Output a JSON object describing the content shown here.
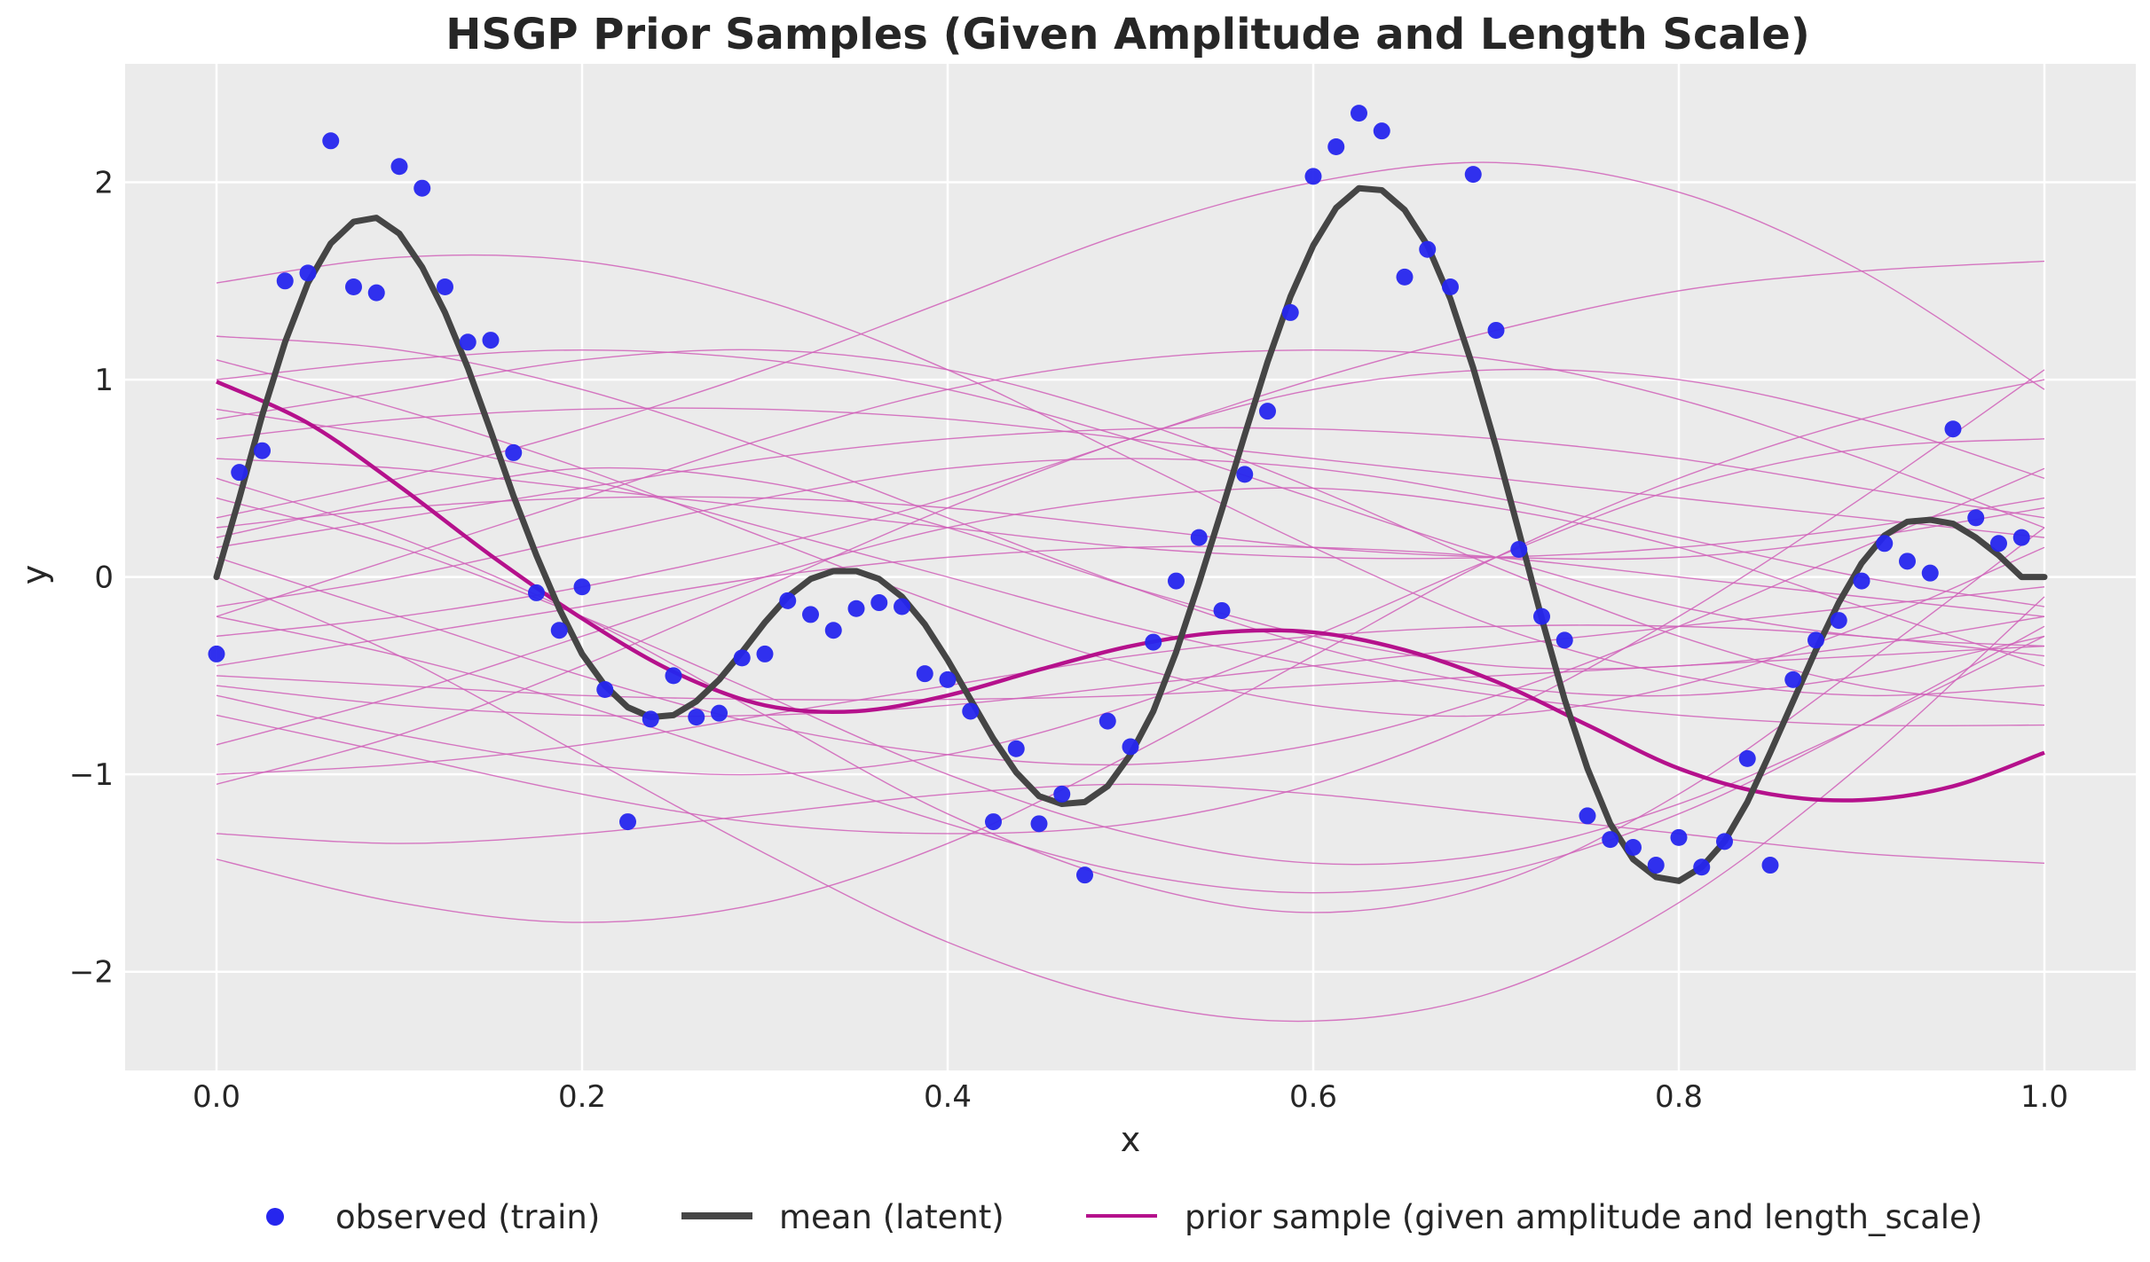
{
  "chart_data": {
    "type": "line",
    "title": "HSGP Prior Samples (Given Amplitude and Length Scale)",
    "xlabel": "x",
    "ylabel": "y",
    "xlim": [
      -0.05,
      1.05
    ],
    "ylim": [
      -2.5,
      2.6
    ],
    "xticks": [
      0.0,
      0.2,
      0.4,
      0.6,
      0.8,
      1.0
    ],
    "xtick_labels": [
      "0.0",
      "0.2",
      "0.4",
      "0.6",
      "0.8",
      "1.0"
    ],
    "yticks": [
      -2,
      -1,
      0,
      1,
      2
    ],
    "ytick_labels": [
      "−2",
      "−1",
      "0",
      "1",
      "2"
    ],
    "grid": true,
    "legend_position": "bottom-center",
    "colors": {
      "background": "#ebebeb",
      "grid": "#ffffff",
      "observed": "#2626ee",
      "mean": "#454545",
      "prior": "#b5118c",
      "prior_thin": "#d060b8"
    },
    "series": [
      {
        "name": "observed (train)",
        "kind": "scatter",
        "points": [
          [
            0.0,
            -0.39
          ],
          [
            0.0125,
            0.53
          ],
          [
            0.025,
            0.64
          ],
          [
            0.0375,
            1.5
          ],
          [
            0.05,
            1.54
          ],
          [
            0.0625,
            2.21
          ],
          [
            0.075,
            1.47
          ],
          [
            0.0875,
            1.44
          ],
          [
            0.1,
            2.08
          ],
          [
            0.1125,
            1.97
          ],
          [
            0.125,
            1.47
          ],
          [
            0.1375,
            1.19
          ],
          [
            0.15,
            1.2
          ],
          [
            0.1625,
            0.63
          ],
          [
            0.175,
            -0.08
          ],
          [
            0.1875,
            -0.27
          ],
          [
            0.2,
            -0.05
          ],
          [
            0.2125,
            -0.57
          ],
          [
            0.225,
            -1.24
          ],
          [
            0.2375,
            -0.72
          ],
          [
            0.25,
            -0.5
          ],
          [
            0.2625,
            -0.71
          ],
          [
            0.275,
            -0.69
          ],
          [
            0.2875,
            -0.41
          ],
          [
            0.3,
            -0.39
          ],
          [
            0.3125,
            -0.12
          ],
          [
            0.325,
            -0.19
          ],
          [
            0.3375,
            -0.27
          ],
          [
            0.35,
            -0.16
          ],
          [
            0.3625,
            -0.13
          ],
          [
            0.375,
            -0.15
          ],
          [
            0.3875,
            -0.49
          ],
          [
            0.4,
            -0.52
          ],
          [
            0.4125,
            -0.68
          ],
          [
            0.425,
            -1.24
          ],
          [
            0.4375,
            -0.87
          ],
          [
            0.45,
            -1.25
          ],
          [
            0.4625,
            -1.1
          ],
          [
            0.475,
            -1.51
          ],
          [
            0.4875,
            -0.73
          ],
          [
            0.5,
            -0.86
          ],
          [
            0.5125,
            -0.33
          ],
          [
            0.525,
            -0.02
          ],
          [
            0.5375,
            0.2
          ],
          [
            0.55,
            -0.17
          ],
          [
            0.5625,
            0.52
          ],
          [
            0.575,
            0.84
          ],
          [
            0.5875,
            1.34
          ],
          [
            0.6,
            2.03
          ],
          [
            0.6125,
            2.18
          ],
          [
            0.625,
            2.35
          ],
          [
            0.6375,
            2.26
          ],
          [
            0.65,
            1.52
          ],
          [
            0.6625,
            1.66
          ],
          [
            0.675,
            1.47
          ],
          [
            0.6875,
            2.04
          ],
          [
            0.7,
            1.25
          ],
          [
            0.7125,
            0.14
          ],
          [
            0.725,
            -0.2
          ],
          [
            0.7375,
            -0.32
          ],
          [
            0.75,
            -1.21
          ],
          [
            0.7625,
            -1.33
          ],
          [
            0.775,
            -1.37
          ],
          [
            0.7875,
            -1.46
          ],
          [
            0.8,
            -1.32
          ],
          [
            0.8125,
            -1.47
          ],
          [
            0.825,
            -1.34
          ],
          [
            0.8375,
            -0.92
          ],
          [
            0.85,
            -1.46
          ],
          [
            0.8625,
            -0.52
          ],
          [
            0.875,
            -0.32
          ],
          [
            0.8875,
            -0.22
          ],
          [
            0.9,
            -0.02
          ],
          [
            0.9125,
            0.17
          ],
          [
            0.925,
            0.08
          ],
          [
            0.9375,
            0.02
          ],
          [
            0.95,
            0.75
          ],
          [
            0.9625,
            0.3
          ],
          [
            0.975,
            0.17
          ],
          [
            0.9875,
            0.2
          ]
        ]
      },
      {
        "name": "mean (latent)",
        "kind": "line",
        "points": [
          [
            0.0,
            0.0
          ],
          [
            0.0125,
            0.4
          ],
          [
            0.025,
            0.82
          ],
          [
            0.0375,
            1.19
          ],
          [
            0.05,
            1.49
          ],
          [
            0.0625,
            1.69
          ],
          [
            0.075,
            1.8
          ],
          [
            0.0875,
            1.82
          ],
          [
            0.1,
            1.74
          ],
          [
            0.1125,
            1.57
          ],
          [
            0.125,
            1.34
          ],
          [
            0.1375,
            1.06
          ],
          [
            0.15,
            0.74
          ],
          [
            0.1625,
            0.41
          ],
          [
            0.175,
            0.11
          ],
          [
            0.1875,
            -0.16
          ],
          [
            0.2,
            -0.39
          ],
          [
            0.2125,
            -0.55
          ],
          [
            0.225,
            -0.66
          ],
          [
            0.2375,
            -0.71
          ],
          [
            0.25,
            -0.7
          ],
          [
            0.2625,
            -0.63
          ],
          [
            0.275,
            -0.52
          ],
          [
            0.2875,
            -0.38
          ],
          [
            0.3,
            -0.23
          ],
          [
            0.3125,
            -0.1
          ],
          [
            0.325,
            -0.01
          ],
          [
            0.3375,
            0.03
          ],
          [
            0.35,
            0.03
          ],
          [
            0.3625,
            -0.01
          ],
          [
            0.375,
            -0.1
          ],
          [
            0.3875,
            -0.24
          ],
          [
            0.4,
            -0.42
          ],
          [
            0.4125,
            -0.62
          ],
          [
            0.425,
            -0.82
          ],
          [
            0.4375,
            -0.99
          ],
          [
            0.45,
            -1.11
          ],
          [
            0.4625,
            -1.15
          ],
          [
            0.475,
            -1.14
          ],
          [
            0.4875,
            -1.06
          ],
          [
            0.5,
            -0.9
          ],
          [
            0.5125,
            -0.68
          ],
          [
            0.525,
            -0.38
          ],
          [
            0.5375,
            -0.03
          ],
          [
            0.55,
            0.34
          ],
          [
            0.5625,
            0.72
          ],
          [
            0.575,
            1.09
          ],
          [
            0.5875,
            1.42
          ],
          [
            0.6,
            1.68
          ],
          [
            0.6125,
            1.87
          ],
          [
            0.625,
            1.97
          ],
          [
            0.6375,
            1.96
          ],
          [
            0.65,
            1.86
          ],
          [
            0.6625,
            1.68
          ],
          [
            0.675,
            1.41
          ],
          [
            0.6875,
            1.06
          ],
          [
            0.7,
            0.66
          ],
          [
            0.7125,
            0.23
          ],
          [
            0.725,
            -0.21
          ],
          [
            0.7375,
            -0.62
          ],
          [
            0.75,
            -0.97
          ],
          [
            0.7625,
            -1.25
          ],
          [
            0.775,
            -1.43
          ],
          [
            0.7875,
            -1.52
          ],
          [
            0.8,
            -1.54
          ],
          [
            0.8125,
            -1.47
          ],
          [
            0.825,
            -1.34
          ],
          [
            0.8375,
            -1.14
          ],
          [
            0.85,
            -0.89
          ],
          [
            0.8625,
            -0.63
          ],
          [
            0.875,
            -0.37
          ],
          [
            0.8875,
            -0.13
          ],
          [
            0.9,
            0.07
          ],
          [
            0.9125,
            0.21
          ],
          [
            0.925,
            0.28
          ],
          [
            0.9375,
            0.29
          ],
          [
            0.95,
            0.27
          ],
          [
            0.9625,
            0.2
          ],
          [
            0.975,
            0.11
          ],
          [
            0.9875,
            0.0
          ],
          [
            1.0,
            0.0
          ]
        ]
      },
      {
        "name": "prior sample (given amplitude and length_scale)",
        "kind": "line",
        "points": [
          [
            0.0,
            0.99
          ],
          [
            0.05,
            0.78
          ],
          [
            0.1,
            0.46
          ],
          [
            0.15,
            0.11
          ],
          [
            0.2,
            -0.21
          ],
          [
            0.25,
            -0.48
          ],
          [
            0.3,
            -0.65
          ],
          [
            0.35,
            -0.68
          ],
          [
            0.4,
            -0.6
          ],
          [
            0.45,
            -0.47
          ],
          [
            0.5,
            -0.35
          ],
          [
            0.55,
            -0.28
          ],
          [
            0.6,
            -0.28
          ],
          [
            0.65,
            -0.37
          ],
          [
            0.7,
            -0.53
          ],
          [
            0.75,
            -0.75
          ],
          [
            0.8,
            -0.97
          ],
          [
            0.85,
            -1.1
          ],
          [
            0.9,
            -1.13
          ],
          [
            0.95,
            -1.06
          ],
          [
            1.0,
            -0.89
          ]
        ]
      }
    ],
    "prior_samples_thin": [
      [
        0.2,
        0.4,
        0.55,
        0.48,
        0.25,
        -0.05,
        -0.3,
        -0.45,
        -0.45,
        -0.35,
        -0.2
      ],
      [
        1.22,
        1.15,
        0.95,
        0.65,
        0.3,
        -0.05,
        -0.35,
        -0.55,
        -0.6,
        -0.5,
        -0.3
      ],
      [
        1.49,
        1.62,
        1.6,
        1.4,
        1.05,
        0.6,
        0.15,
        -0.25,
        -0.5,
        -0.6,
        -0.55
      ],
      [
        -1.0,
        -0.95,
        -0.85,
        -0.7,
        -0.55,
        -0.4,
        -0.3,
        -0.25,
        -0.25,
        -0.3,
        -0.4
      ],
      [
        -1.43,
        -1.65,
        -1.75,
        -1.65,
        -1.35,
        -0.9,
        -0.4,
        0.1,
        0.5,
        0.8,
        1.0
      ],
      [
        -1.3,
        -1.35,
        -1.3,
        -1.2,
        -1.1,
        -1.05,
        -1.1,
        -1.2,
        -1.3,
        -1.4,
        -1.45
      ],
      [
        0.5,
        0.2,
        -0.2,
        -0.7,
        -1.2,
        -1.55,
        -1.7,
        -1.55,
        -1.1,
        -0.45,
        0.25
      ],
      [
        -0.5,
        -0.55,
        -0.6,
        -0.62,
        -0.62,
        -0.6,
        -0.55,
        -0.5,
        -0.45,
        -0.4,
        -0.35
      ],
      [
        0.8,
        0.95,
        1.1,
        1.15,
        1.05,
        0.8,
        0.45,
        0.05,
        -0.3,
        -0.55,
        -0.65
      ],
      [
        -0.2,
        0.1,
        0.4,
        0.7,
        0.95,
        1.1,
        1.15,
        1.1,
        0.9,
        0.6,
        0.25
      ],
      [
        0.0,
        -0.4,
        -0.9,
        -1.4,
        -1.85,
        -2.15,
        -2.25,
        -2.1,
        -1.65,
        -0.95,
        -0.1
      ],
      [
        0.7,
        0.8,
        0.85,
        0.85,
        0.8,
        0.7,
        0.6,
        0.5,
        0.4,
        0.3,
        0.2
      ],
      [
        -0.6,
        -0.8,
        -0.95,
        -1.0,
        -0.9,
        -0.65,
        -0.3,
        0.1,
        0.45,
        0.65,
        0.7
      ],
      [
        0.3,
        0.5,
        0.75,
        1.05,
        1.4,
        1.75,
        2.0,
        2.1,
        1.95,
        1.55,
        0.95
      ],
      [
        -0.85,
        -0.6,
        -0.3,
        0.0,
        0.25,
        0.4,
        0.45,
        0.35,
        0.15,
        -0.15,
        -0.45
      ],
      [
        1.0,
        1.1,
        1.15,
        1.1,
        0.95,
        0.7,
        0.4,
        0.1,
        -0.15,
        -0.3,
        -0.35
      ],
      [
        -0.2,
        -0.4,
        -0.65,
        -0.95,
        -1.25,
        -1.5,
        -1.6,
        -1.5,
        -1.2,
        -0.75,
        -0.25
      ],
      [
        0.6,
        0.55,
        0.45,
        0.35,
        0.25,
        0.15,
        0.1,
        0.1,
        0.15,
        0.25,
        0.4
      ],
      [
        -0.45,
        -0.3,
        -0.15,
        0.0,
        0.1,
        0.15,
        0.15,
        0.1,
        0.0,
        -0.1,
        -0.2
      ],
      [
        0.1,
        -0.2,
        -0.5,
        -0.75,
        -0.9,
        -0.95,
        -0.85,
        -0.6,
        -0.25,
        0.15,
        0.55
      ],
      [
        -0.7,
        -0.9,
        -1.1,
        -1.25,
        -1.3,
        -1.25,
        -1.05,
        -0.7,
        -0.2,
        0.4,
        1.05
      ],
      [
        0.85,
        0.7,
        0.5,
        0.25,
        0.0,
        -0.25,
        -0.45,
        -0.6,
        -0.7,
        -0.75,
        -0.75
      ],
      [
        -0.15,
        0.0,
        0.2,
        0.4,
        0.55,
        0.6,
        0.55,
        0.4,
        0.2,
        0.0,
        -0.15
      ],
      [
        0.4,
        0.15,
        -0.2,
        -0.6,
        -1.0,
        -1.3,
        -1.45,
        -1.4,
        -1.15,
        -0.75,
        -0.3
      ],
      [
        -1.05,
        -0.8,
        -0.45,
        -0.05,
        0.35,
        0.7,
        0.95,
        1.05,
        1.0,
        0.8,
        0.5
      ],
      [
        0.25,
        0.35,
        0.4,
        0.4,
        0.35,
        0.25,
        0.15,
        0.1,
        0.1,
        0.2,
        0.35
      ],
      [
        -0.3,
        -0.2,
        -0.05,
        0.15,
        0.4,
        0.7,
        1.0,
        1.25,
        1.45,
        1.55,
        1.6
      ],
      [
        1.1,
        0.85,
        0.55,
        0.2,
        -0.15,
        -0.45,
        -0.65,
        -0.7,
        -0.55,
        -0.25,
        0.15
      ],
      [
        -0.55,
        -0.65,
        -0.7,
        -0.7,
        -0.65,
        -0.55,
        -0.45,
        -0.35,
        -0.25,
        -0.15,
        -0.05
      ],
      [
        0.15,
        0.3,
        0.45,
        0.6,
        0.7,
        0.75,
        0.75,
        0.7,
        0.6,
        0.45,
        0.3
      ]
    ],
    "legend": [
      {
        "label": "observed (train)",
        "kind": "dot"
      },
      {
        "label": "mean (latent)",
        "kind": "thick-line"
      },
      {
        "label": "prior sample (given amplitude and length_scale)",
        "kind": "line"
      }
    ]
  }
}
